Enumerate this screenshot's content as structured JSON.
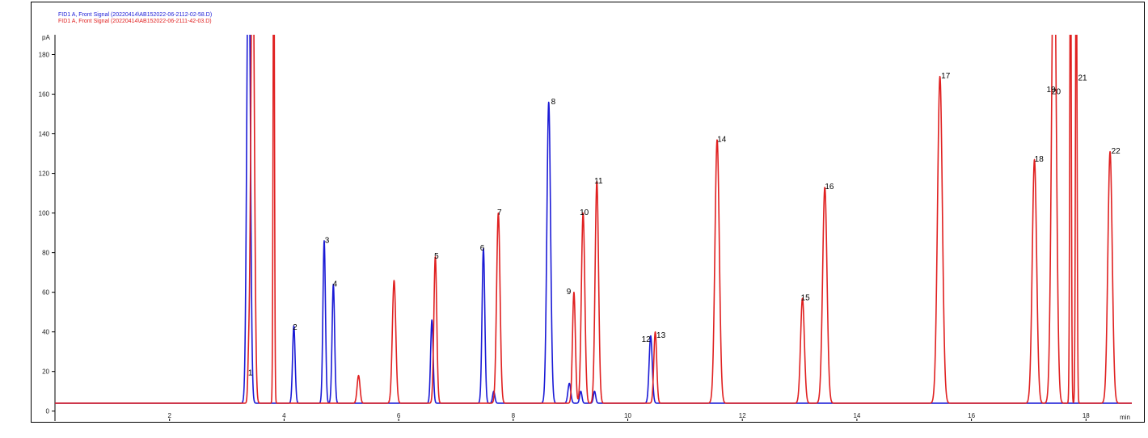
{
  "chart_data": {
    "type": "line",
    "title": "",
    "xlabel": "min",
    "ylabel": "pA",
    "xlim": [
      0,
      18.8
    ],
    "ylim": [
      -5,
      190
    ],
    "x_ticks": [
      2,
      4,
      6,
      8,
      10,
      12,
      14,
      16,
      18
    ],
    "y_ticks": [
      0,
      20,
      40,
      60,
      80,
      100,
      120,
      140,
      160,
      180
    ],
    "baseline": 4,
    "grid": false,
    "series": [
      {
        "name": "FID1 A, Front Signal (20220414\\AB152022-06-2112-02-58.D)",
        "color": "#1a1ad6",
        "peaks": [
          {
            "x": 3.38,
            "height": 250,
            "width": 0.03
          },
          {
            "x": 4.17,
            "height": 39,
            "width": 0.022
          },
          {
            "x": 4.7,
            "height": 82,
            "width": 0.022
          },
          {
            "x": 4.86,
            "height": 60,
            "width": 0.022
          },
          {
            "x": 6.58,
            "height": 42,
            "width": 0.022
          },
          {
            "x": 7.48,
            "height": 78,
            "width": 0.024
          },
          {
            "x": 7.66,
            "height": 6,
            "width": 0.02
          },
          {
            "x": 8.62,
            "height": 152,
            "width": 0.032
          },
          {
            "x": 8.98,
            "height": 10,
            "width": 0.025
          },
          {
            "x": 9.18,
            "height": 6,
            "width": 0.02
          },
          {
            "x": 9.42,
            "height": 6,
            "width": 0.02
          },
          {
            "x": 10.4,
            "height": 34,
            "width": 0.027
          }
        ]
      },
      {
        "name": "FID1 A, Front Signal (20220414\\AB152022-06-2111-42-03.D)",
        "color": "#e02020",
        "peaks": [
          {
            "x": 3.38,
            "height": 16,
            "width": 0.015
          },
          {
            "x": 3.45,
            "height": 250,
            "width": 0.03
          },
          {
            "x": 3.82,
            "height": 250,
            "width": 0.012
          },
          {
            "x": 5.3,
            "height": 14,
            "width": 0.025
          },
          {
            "x": 5.92,
            "height": 62,
            "width": 0.03
          },
          {
            "x": 6.64,
            "height": 74,
            "width": 0.025
          },
          {
            "x": 7.74,
            "height": 96,
            "width": 0.03
          },
          {
            "x": 9.06,
            "height": 56,
            "width": 0.025
          },
          {
            "x": 9.22,
            "height": 96,
            "width": 0.03
          },
          {
            "x": 9.46,
            "height": 112,
            "width": 0.03
          },
          {
            "x": 10.48,
            "height": 36,
            "width": 0.025
          },
          {
            "x": 11.56,
            "height": 133,
            "width": 0.038
          },
          {
            "x": 13.05,
            "height": 53,
            "width": 0.033
          },
          {
            "x": 13.44,
            "height": 109,
            "width": 0.038
          },
          {
            "x": 15.45,
            "height": 165,
            "width": 0.042
          },
          {
            "x": 17.1,
            "height": 123,
            "width": 0.038
          },
          {
            "x": 17.44,
            "height": 250,
            "width": 0.04
          },
          {
            "x": 17.73,
            "height": 250,
            "width": 0.013
          },
          {
            "x": 17.83,
            "height": 250,
            "width": 0.013
          },
          {
            "x": 18.42,
            "height": 127,
            "width": 0.038
          }
        ]
      }
    ],
    "annotations": [
      {
        "text": "1",
        "x": 3.41,
        "y": 18
      },
      {
        "text": "2",
        "x": 4.19,
        "y": 41
      },
      {
        "text": "3",
        "x": 4.75,
        "y": 85
      },
      {
        "text": "4",
        "x": 4.89,
        "y": 63
      },
      {
        "text": "5",
        "x": 6.66,
        "y": 77
      },
      {
        "text": "6",
        "x": 7.46,
        "y": 81
      },
      {
        "text": "7",
        "x": 7.76,
        "y": 99
      },
      {
        "text": "8",
        "x": 8.7,
        "y": 155
      },
      {
        "text": "9",
        "x": 8.97,
        "y": 59
      },
      {
        "text": "10",
        "x": 9.24,
        "y": 99
      },
      {
        "text": "11",
        "x": 9.49,
        "y": 115
      },
      {
        "text": "12",
        "x": 10.32,
        "y": 35
      },
      {
        "text": "13",
        "x": 10.58,
        "y": 37
      },
      {
        "text": "14",
        "x": 11.64,
        "y": 136
      },
      {
        "text": "15",
        "x": 13.1,
        "y": 56
      },
      {
        "text": "16",
        "x": 13.52,
        "y": 112
      },
      {
        "text": "17",
        "x": 15.55,
        "y": 168
      },
      {
        "text": "18",
        "x": 17.18,
        "y": 126
      },
      {
        "text": "19",
        "x": 17.39,
        "y": 161
      },
      {
        "text": "20",
        "x": 17.48,
        "y": 160
      },
      {
        "text": "21",
        "x": 17.94,
        "y": 167
      },
      {
        "text": "22",
        "x": 18.52,
        "y": 130
      }
    ]
  }
}
